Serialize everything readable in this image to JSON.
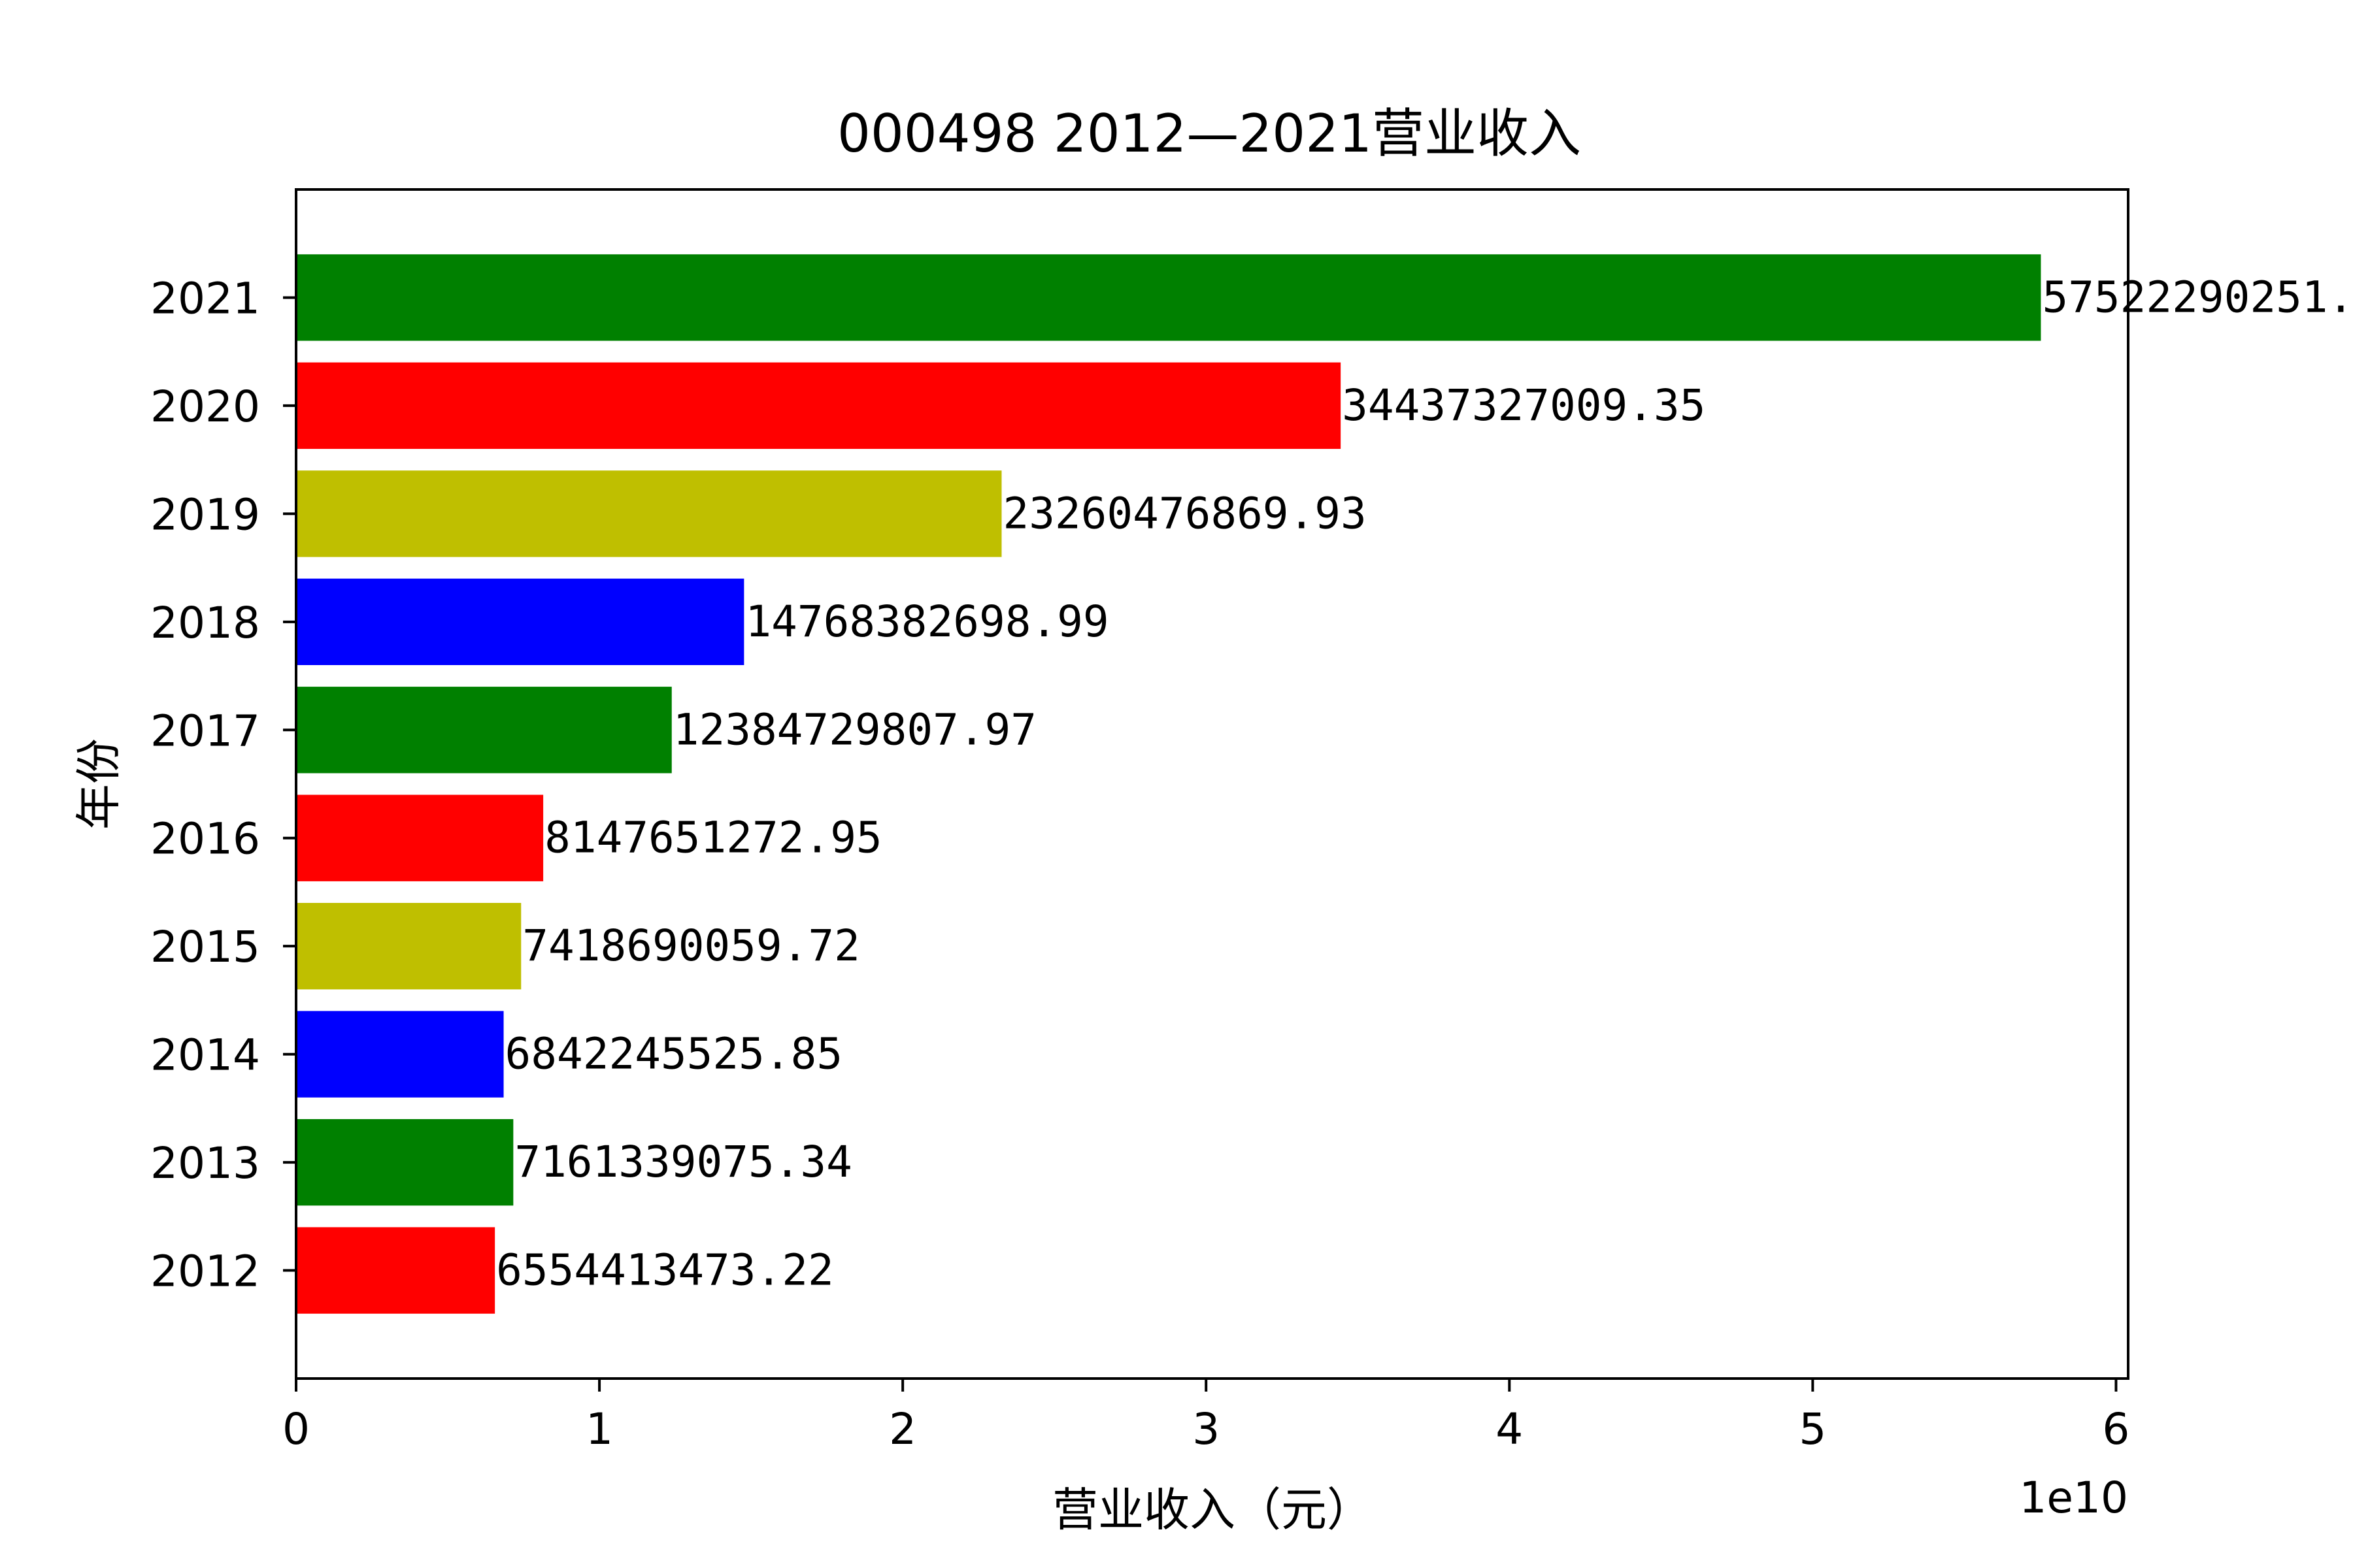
{
  "chart_data": {
    "type": "bar",
    "orientation": "horizontal",
    "title": "000498 2012—2021营业收入",
    "xlabel": "营业收入（元）",
    "ylabel": "年份",
    "x_scale_label": "1e10",
    "xlim": [
      0,
      60400000000
    ],
    "x_ticks": [
      {
        "value": 0,
        "label": "0"
      },
      {
        "value": 10000000000,
        "label": "1"
      },
      {
        "value": 20000000000,
        "label": "2"
      },
      {
        "value": 30000000000,
        "label": "3"
      },
      {
        "value": 40000000000,
        "label": "4"
      },
      {
        "value": 50000000000,
        "label": "5"
      },
      {
        "value": 60000000000,
        "label": "6"
      }
    ],
    "grid": false,
    "legend": "none",
    "categories": [
      "2012",
      "2013",
      "2014",
      "2015",
      "2016",
      "2017",
      "2018",
      "2019",
      "2020",
      "2021"
    ],
    "values": [
      6554413473.22,
      7161339075.34,
      6842245525.85,
      7418690059.72,
      8147651272.95,
      12384729807.97,
      14768382698.99,
      23260476869.93,
      34437327009.35,
      57522290251.0
    ],
    "value_labels": [
      "6554413473.22",
      "7161339075.34",
      "6842245525.85",
      "7418690059.72",
      "8147651272.95",
      "12384729807.97",
      "14768382698.99",
      "23260476869.93",
      "34437327009.35",
      "57522290251."
    ],
    "colors": [
      "#ff0000",
      "#008000",
      "#0000ff",
      "#bfbf00",
      "#ff0000",
      "#008000",
      "#0000ff",
      "#bfbf00",
      "#ff0000",
      "#008000"
    ]
  }
}
